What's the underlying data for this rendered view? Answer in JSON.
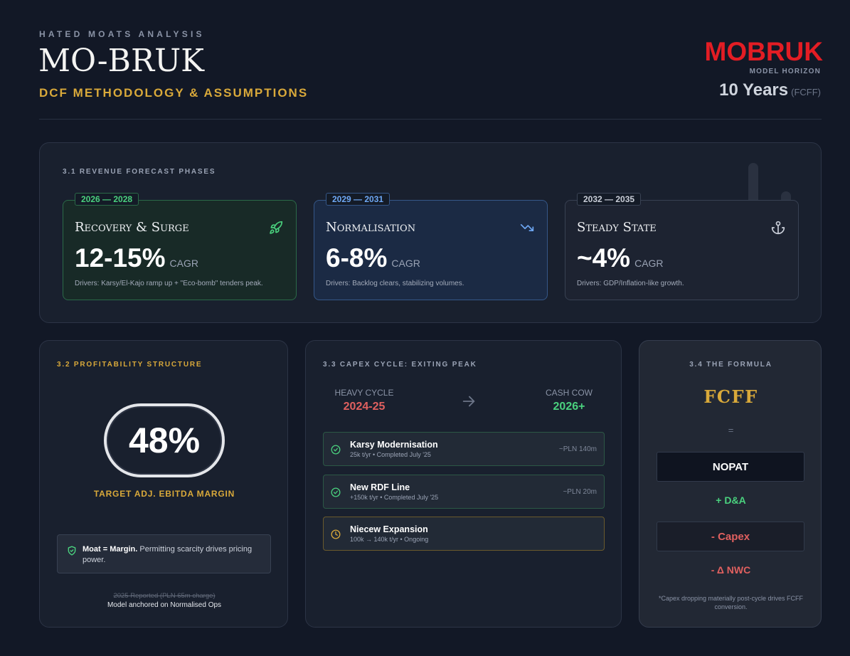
{
  "header": {
    "eyebrow": "HATED MOATS ANALYSIS",
    "title": "MO-BRUK",
    "subtitle": "DCF METHODOLOGY & ASSUMPTIONS",
    "logo_text": "MOBRUK",
    "horizon_label": "MODEL HORIZON",
    "horizon_value": "10 Years",
    "horizon_suffix": "(FCFF)"
  },
  "revenue": {
    "title": "3.1 REVENUE FORECAST PHASES",
    "phases": [
      {
        "period": "2026 — 2028",
        "name": "Recovery & Surge",
        "cagr": "12-15%",
        "unit": "CAGR",
        "drivers": "Drivers: Karsy/El-Kajo ramp up + \"Eco-bomb\" tenders peak.",
        "icon": "rocket-icon",
        "color": "#4ad17e"
      },
      {
        "period": "2029 — 2031",
        "name": "Normalisation",
        "cagr": "6-8%",
        "unit": "CAGR",
        "drivers": "Drivers: Backlog clears, stabilizing volumes.",
        "icon": "trend-down-icon",
        "color": "#6ea8f5"
      },
      {
        "period": "2032 — 2035",
        "name": "Steady State",
        "cagr": "~4%",
        "unit": "CAGR",
        "drivers": "Drivers: GDP/Inflation-like growth.",
        "icon": "anchor-icon",
        "color": "#c9ced8"
      }
    ]
  },
  "profitability": {
    "title": "3.2 PROFITABILITY STRUCTURE",
    "margin": "48%",
    "margin_label": "TARGET ADJ. EBITDA MARGIN",
    "moat_bold": "Moat = Margin.",
    "moat_text": " Permitting scarcity drives pricing power.",
    "reported": "2025 Reported (PLN 65m charge)",
    "anchored": "Model anchored on Normalised Ops"
  },
  "capex": {
    "title": "3.3 CAPEX CYCLE: EXITING PEAK",
    "heavy_label": "HEAVY CYCLE",
    "heavy_value": "2024-25",
    "cow_label": "CASH COW",
    "cow_value": "2026+",
    "projects": [
      {
        "name": "Karsy Modernisation",
        "meta": "25k t/yr • Completed July '25",
        "cost": "~PLN 140m",
        "status": "completed"
      },
      {
        "name": "New RDF Line",
        "meta": "+150k t/yr • Completed July '25",
        "cost": "~PLN 20m",
        "status": "completed"
      },
      {
        "name": "Niecew Expansion",
        "meta": "100k → 140k t/yr • Ongoing",
        "cost": "",
        "status": "ongoing"
      }
    ]
  },
  "formula": {
    "title": "3.4 THE FORMULA",
    "head": "FCFF",
    "equals": "=",
    "nopat": "NOPAT",
    "da": "+ D&A",
    "capex": "- Capex",
    "nwc": "- Δ NWC",
    "note": "*Capex dropping materially post-cycle drives FCFF conversion."
  },
  "colors": {
    "accent_gold": "#d9a93a",
    "brand_red": "#e31d24",
    "positive": "#4ad17e",
    "negative": "#e0605f"
  }
}
